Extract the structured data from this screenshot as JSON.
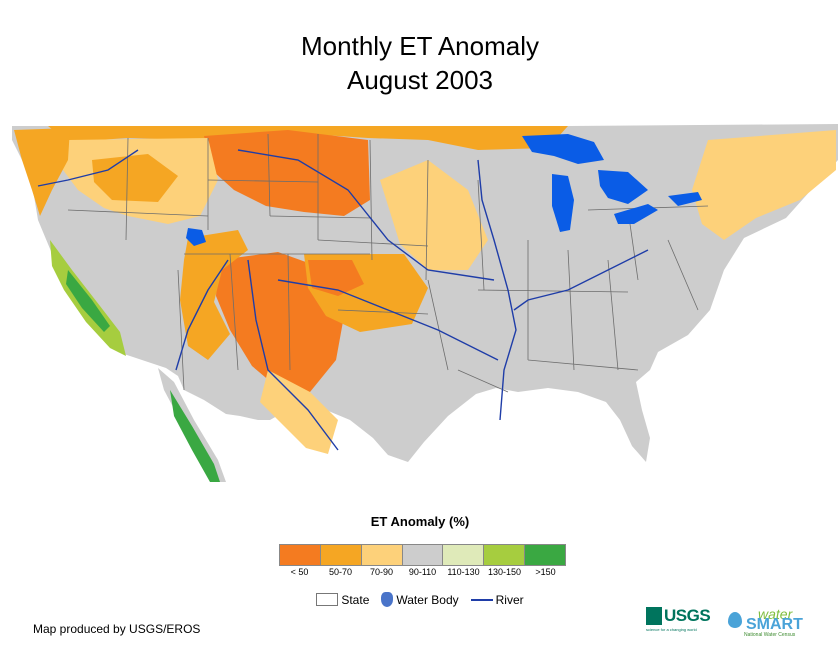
{
  "title": {
    "line1": "Monthly ET Anomaly",
    "line2": "August 2003"
  },
  "legend": {
    "title": "ET Anomaly (%)",
    "classes": [
      {
        "label": "< 50",
        "color": "#f47b20"
      },
      {
        "label": "50-70",
        "color": "#f5a623"
      },
      {
        "label": "70-90",
        "color": "#fdd17a"
      },
      {
        "label": "90-110",
        "color": "#cdcdcd"
      },
      {
        "label": "110-130",
        "color": "#dfeab9"
      },
      {
        "label": "130-150",
        "color": "#a6cd3f"
      },
      {
        "label": ">150",
        "color": "#3aa842"
      }
    ],
    "keys": {
      "state": "State",
      "water_body": "Water Body",
      "river": "River"
    }
  },
  "map": {
    "water_color": "#0a5ce6",
    "river_color": "#1f3da8",
    "state_line_color": "#6d6d6d"
  },
  "credit": "Map produced by USGS/EROS",
  "logos": {
    "usgs": "USGS",
    "usgs_tagline": "science for a changing world",
    "watersmart_water": "water",
    "watersmart_smart": "SMART",
    "watersmart_tagline": "National Water Census"
  }
}
